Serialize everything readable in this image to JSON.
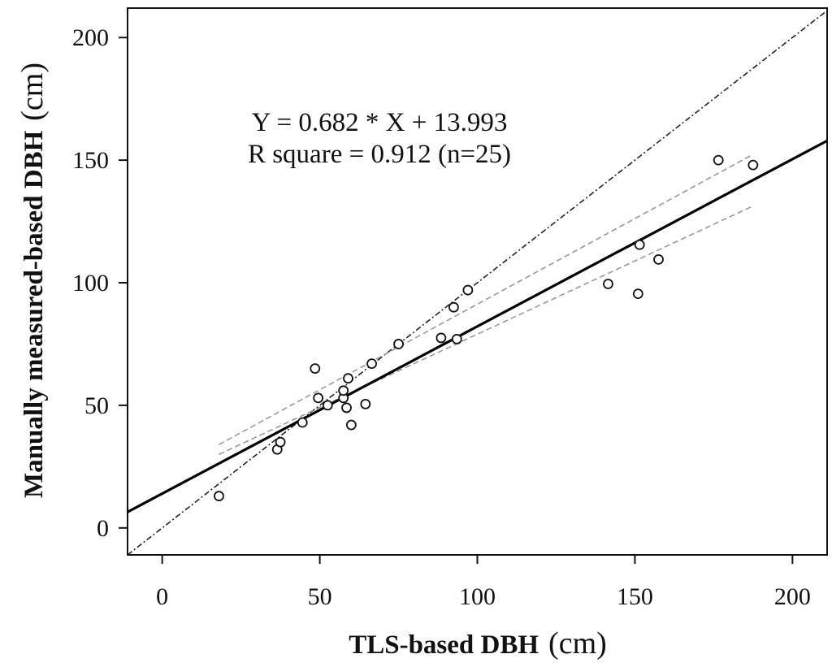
{
  "chart_data": {
    "type": "scatter",
    "title": "",
    "xlabel": "TLS-based DBH",
    "xlabel_unit": "(cm)",
    "ylabel": "Manually measured-based DBH",
    "ylabel_unit": "(cm)",
    "xlim": [
      -11,
      211
    ],
    "ylim": [
      -11,
      212
    ],
    "xticks": [
      0,
      50,
      100,
      150,
      200
    ],
    "yticks": [
      0,
      50,
      100,
      150,
      200
    ],
    "grid": false,
    "annotations": [
      "Y = 0.682 * X + 13.993",
      "R square = 0.912 (n=25)"
    ],
    "regression": {
      "slope": 0.682,
      "intercept": 13.993
    },
    "reference_line": {
      "slope": 1,
      "intercept": 0,
      "style": "dash-dot"
    },
    "confidence_band": {
      "x_range": [
        18,
        187
      ],
      "lower": [
        [
          18,
          30
        ],
        [
          187,
          131
        ]
      ],
      "upper": [
        [
          18,
          34
        ],
        [
          187,
          152
        ]
      ]
    },
    "points": [
      [
        18,
        13
      ],
      [
        36.5,
        32
      ],
      [
        37.5,
        35
      ],
      [
        44.5,
        43
      ],
      [
        48.5,
        65
      ],
      [
        49.5,
        53
      ],
      [
        52.5,
        50
      ],
      [
        57.5,
        53
      ],
      [
        57.5,
        56
      ],
      [
        58.5,
        49
      ],
      [
        59,
        61
      ],
      [
        60,
        42
      ],
      [
        64.5,
        50.5
      ],
      [
        66.5,
        67
      ],
      [
        75,
        75
      ],
      [
        88.5,
        77.5
      ],
      [
        92.5,
        90
      ],
      [
        93.5,
        77
      ],
      [
        97,
        97
      ],
      [
        141.5,
        99.5
      ],
      [
        151,
        95.5
      ],
      [
        151.5,
        115.5
      ],
      [
        157.5,
        109.5
      ],
      [
        176.5,
        150
      ],
      [
        187.5,
        148
      ]
    ]
  }
}
